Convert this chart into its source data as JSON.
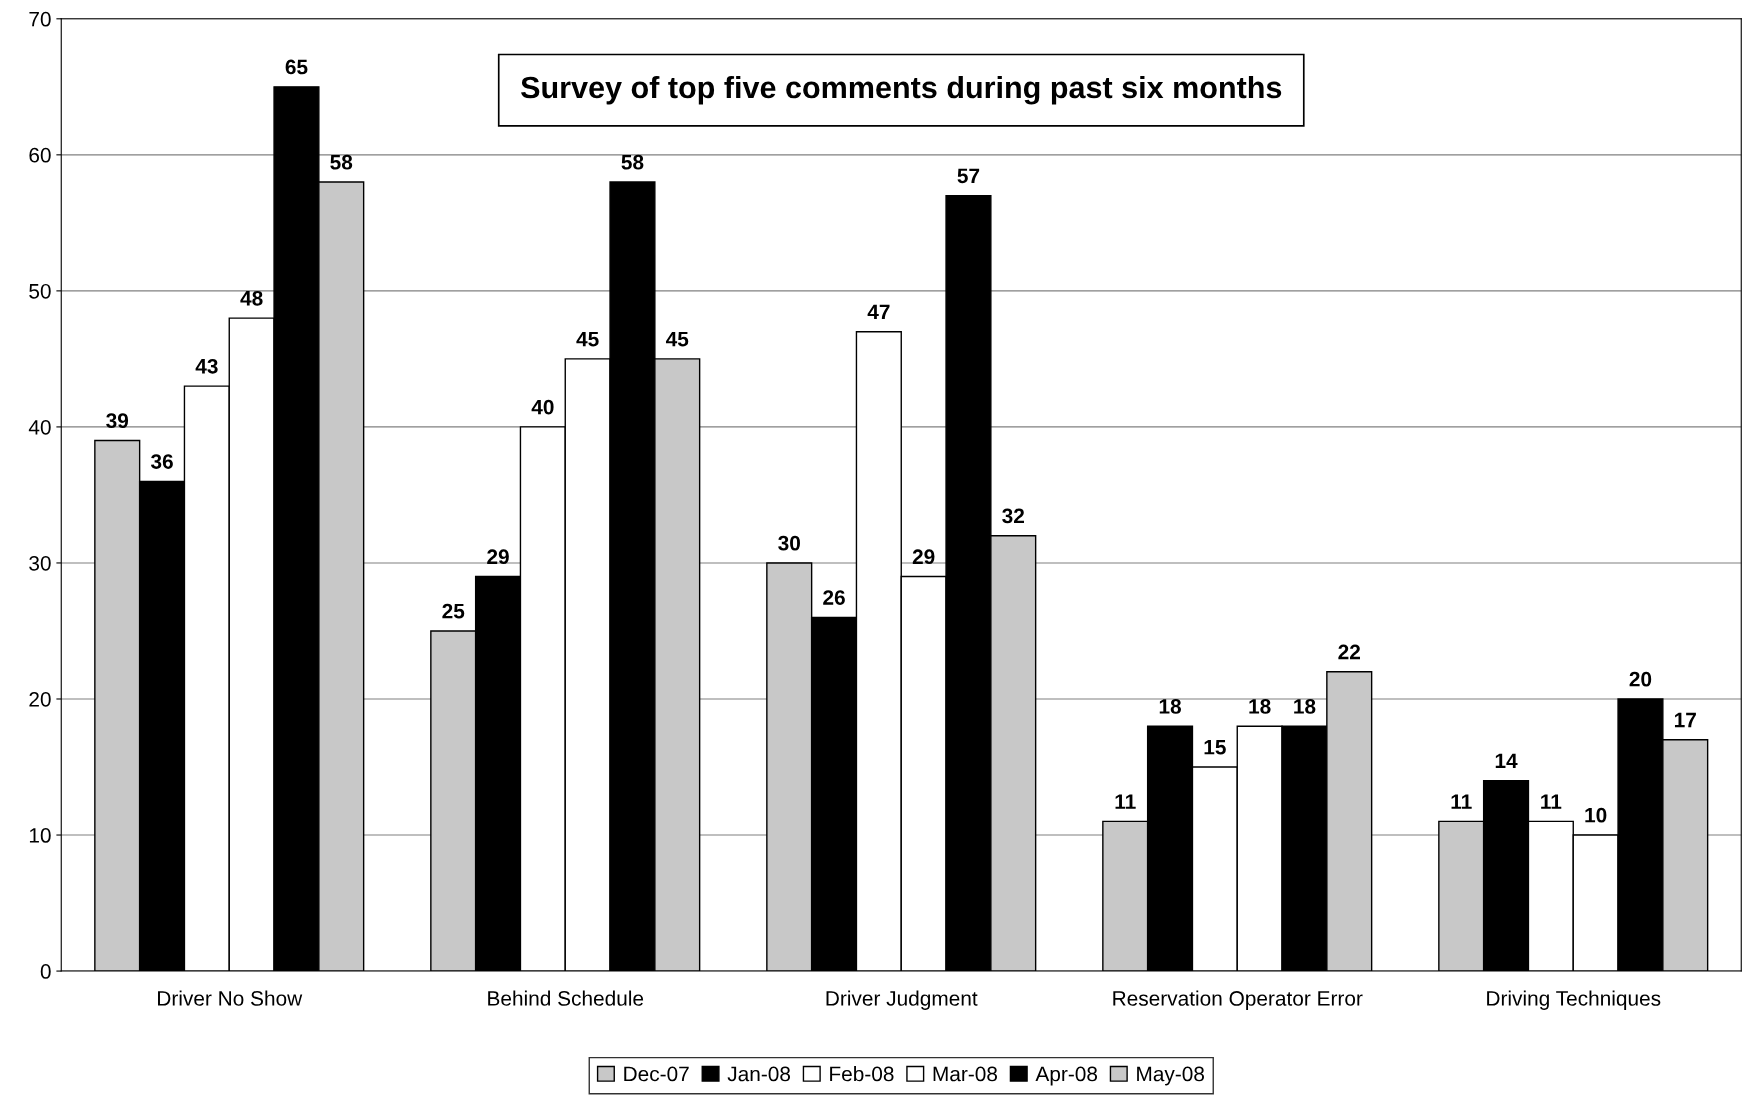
{
  "chart_data": {
    "type": "bar",
    "title": "Survey of top five comments during past six months",
    "categories": [
      "Driver No Show",
      "Behind Schedule",
      "Driver Judgment",
      "Reservation Operator Error",
      "Driving Techniques"
    ],
    "series": [
      {
        "name": "Dec-07",
        "color": "#c8c8c8",
        "values": [
          39,
          25,
          30,
          11,
          11
        ]
      },
      {
        "name": "Jan-08",
        "color": "#000000",
        "values": [
          36,
          29,
          26,
          18,
          14
        ]
      },
      {
        "name": "Feb-08",
        "color": "#ffffff",
        "values": [
          43,
          40,
          47,
          15,
          11
        ]
      },
      {
        "name": "Mar-08",
        "color": "#ffffff",
        "values": [
          48,
          45,
          29,
          18,
          10
        ]
      },
      {
        "name": "Apr-08",
        "color": "#000000",
        "values": [
          65,
          58,
          57,
          18,
          20
        ]
      },
      {
        "name": "May-08",
        "color": "#c8c8c8",
        "values": [
          58,
          45,
          32,
          22,
          17
        ]
      }
    ],
    "ylim": [
      0,
      70
    ],
    "yticks": [
      0,
      10,
      20,
      30,
      40,
      50,
      60,
      70
    ],
    "grid": "y",
    "legend": "bottom",
    "data_labels": true
  }
}
